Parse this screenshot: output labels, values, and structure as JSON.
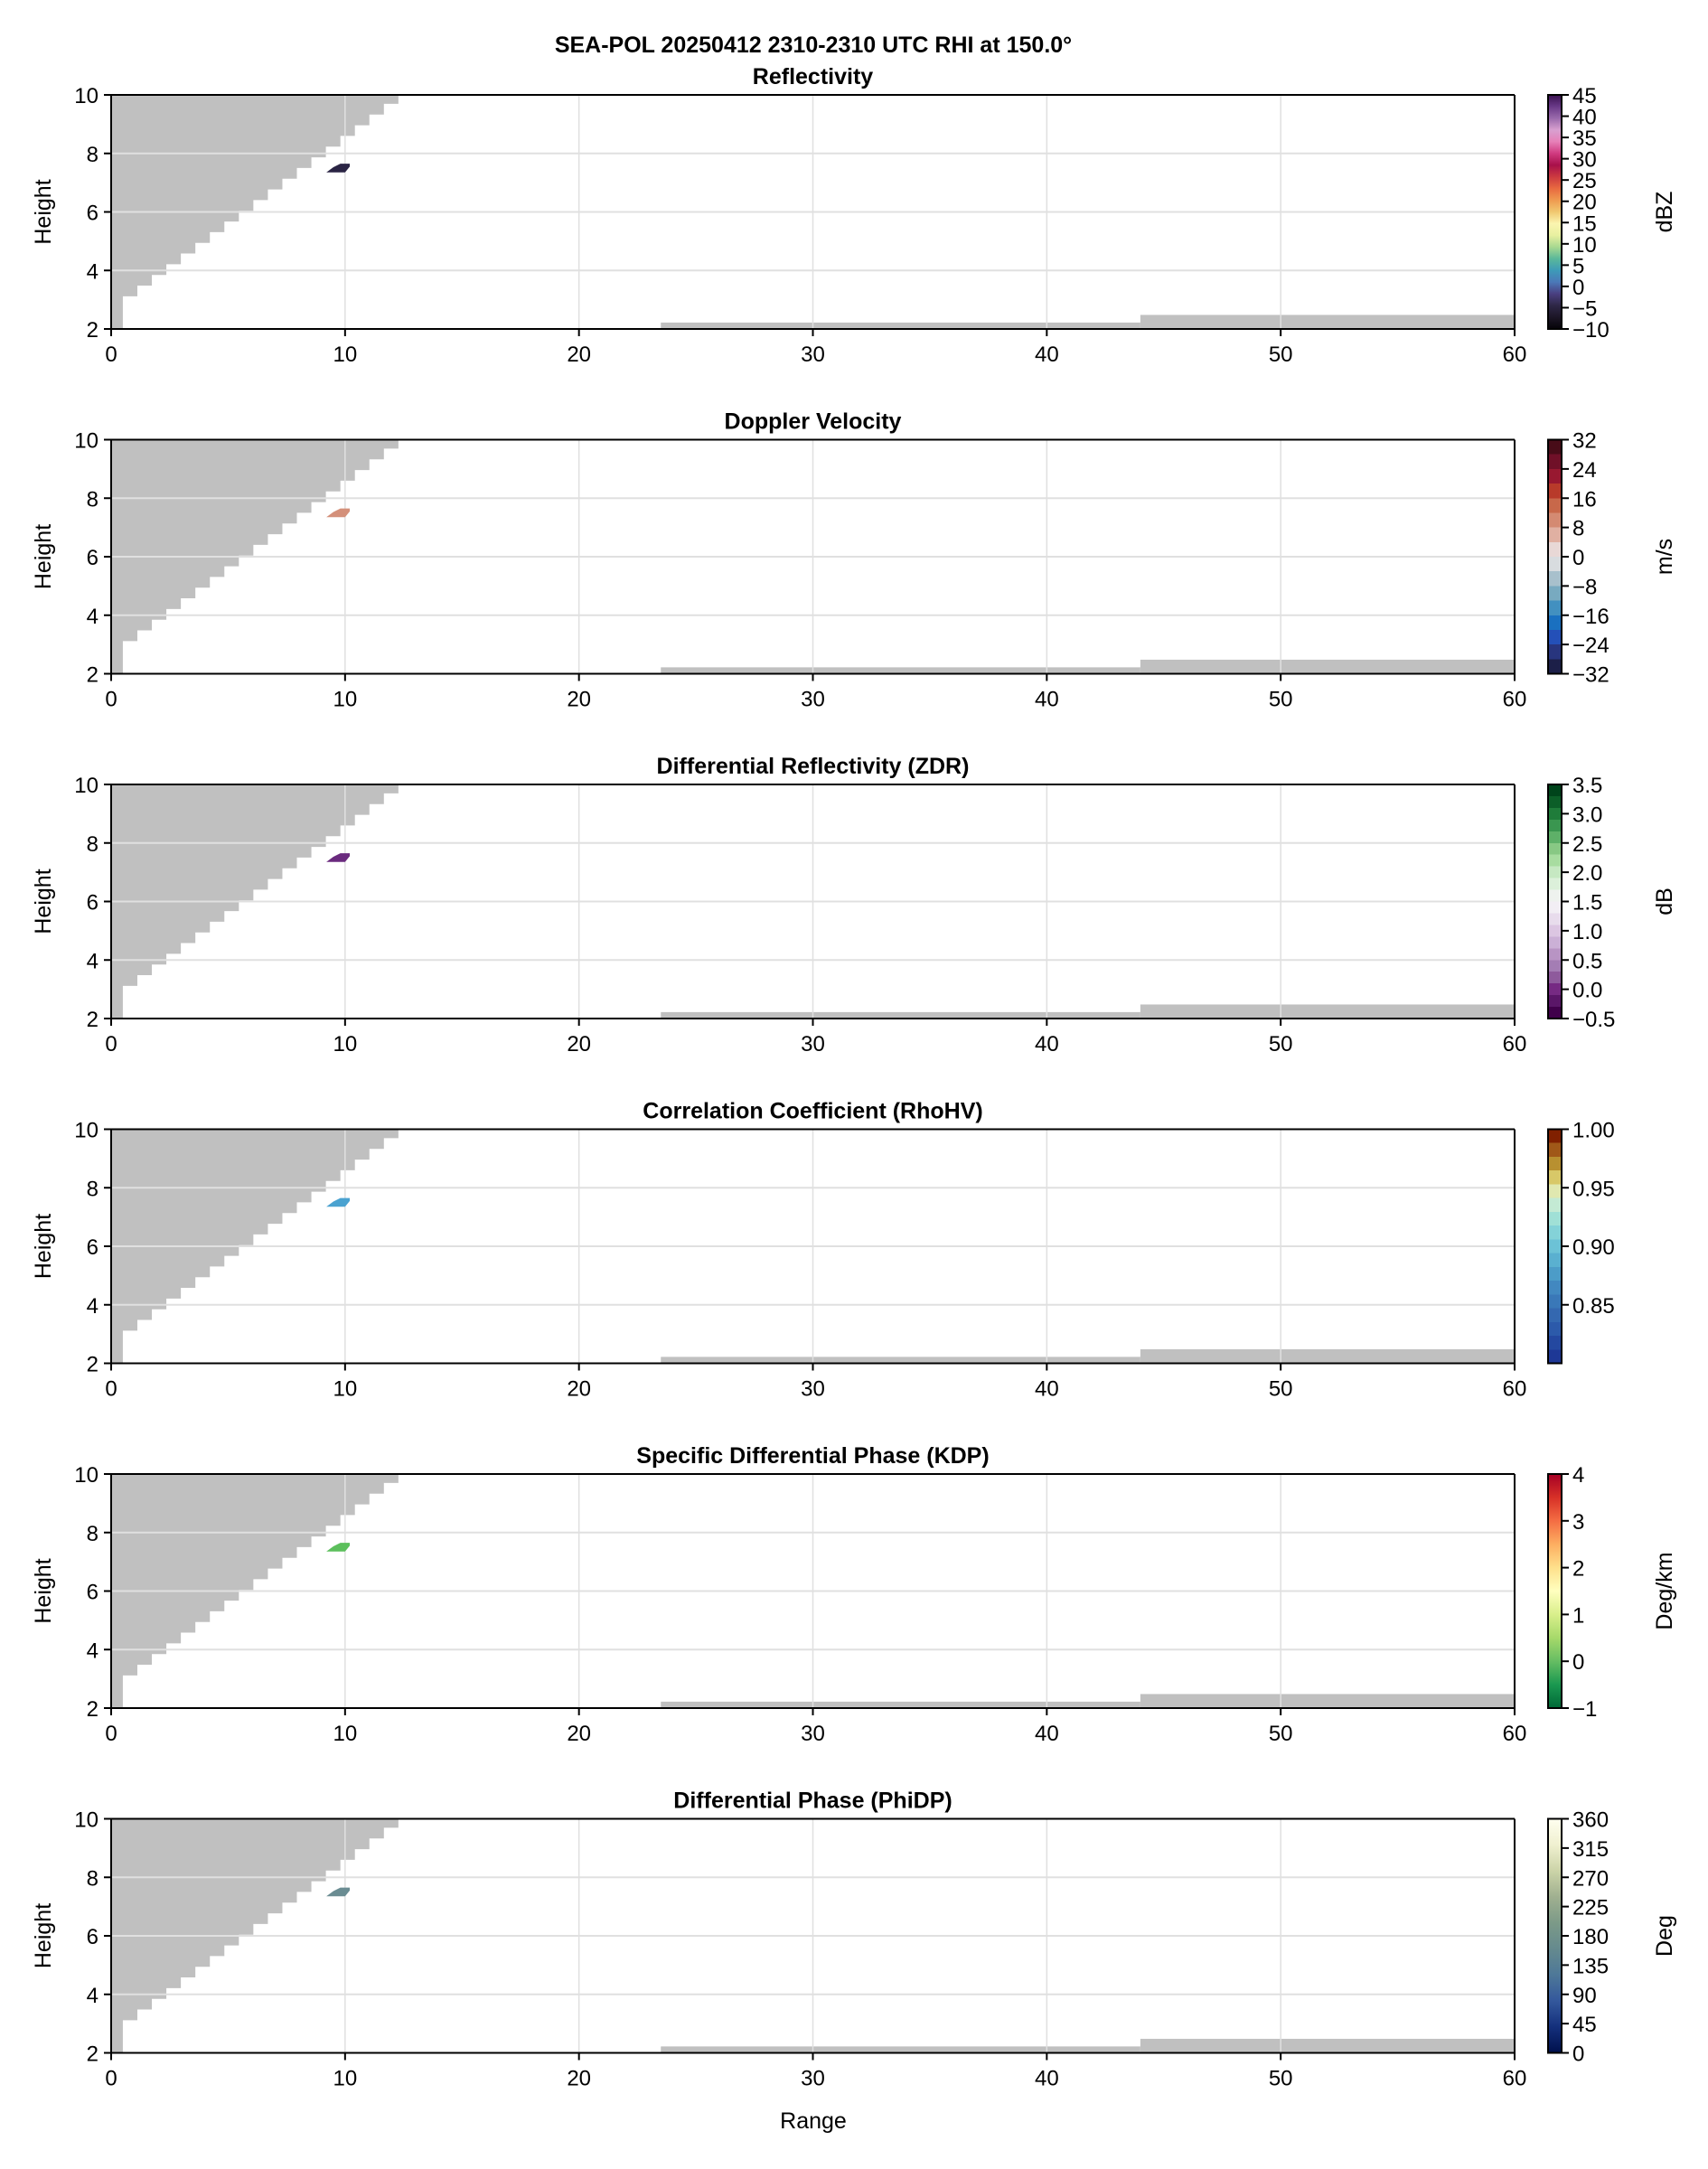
{
  "figure": {
    "suptitle": "SEA-POL 20250412 2310-2310 UTC RHI at 150.0°",
    "xlabel": "Range",
    "ylabel": "Height",
    "missing_color": "#c0c0c0",
    "grid_color": "#e0e0e0"
  },
  "chart_data": [
    {
      "type": "heatmap",
      "title": "Reflectivity",
      "xlabel": "",
      "ylabel": "Height",
      "xlim": [
        0,
        60
      ],
      "ylim": [
        2,
        10
      ],
      "grid": true,
      "xticks": [
        "0",
        "10",
        "20",
        "30",
        "40",
        "50",
        "60"
      ],
      "yticks": [
        "2",
        "4",
        "6",
        "8",
        "10"
      ],
      "colorbar": {
        "label": "dBZ",
        "range": [
          -10,
          45
        ],
        "ticks": [
          -10,
          -5,
          0,
          5,
          10,
          15,
          20,
          25,
          30,
          35,
          40,
          45
        ],
        "tick_labels": [
          "−10",
          "−5",
          "0",
          "5",
          "10",
          "15",
          "20",
          "25",
          "30",
          "35",
          "40",
          "45"
        ],
        "colors": [
          "#050308",
          "#1c1626",
          "#2e2746",
          "#4a3f80",
          "#4b78b8",
          "#3d9ab8",
          "#5ab89a",
          "#a8d890",
          "#e8f0a0",
          "#fbf5b0",
          "#f0c870",
          "#ef9a50",
          "#e86a40",
          "#cc3a40",
          "#a8104a",
          "#d03a80",
          "#e680b8",
          "#d8a0d0",
          "#9a6aac",
          "#6a3a88",
          "#3a1250"
        ]
      },
      "echo": {
        "range": [
          9.2,
          10.2
        ],
        "height": [
          7.35,
          7.65
        ],
        "color": "#2a2444"
      }
    },
    {
      "type": "heatmap",
      "title": "Doppler Velocity",
      "xlabel": "",
      "ylabel": "Height",
      "xlim": [
        0,
        60
      ],
      "ylim": [
        2,
        10
      ],
      "grid": true,
      "xticks": [
        "0",
        "10",
        "20",
        "30",
        "40",
        "50",
        "60"
      ],
      "yticks": [
        "2",
        "4",
        "6",
        "8",
        "10"
      ],
      "colorbar": {
        "label": "m/s",
        "range": [
          -32,
          32
        ],
        "ticks": [
          -32,
          -24,
          -16,
          -8,
          0,
          8,
          16,
          24,
          32
        ],
        "tick_labels": [
          "−32",
          "−24",
          "−16",
          "−8",
          "0",
          "8",
          "16",
          "24",
          "32"
        ],
        "colors": [
          "#1c1f48",
          "#28357e",
          "#2450b8",
          "#1a70c0",
          "#4290c0",
          "#78aac0",
          "#a8c0cc",
          "#d8dcdf",
          "#e8d8d6",
          "#e0b0a2",
          "#d48a72",
          "#c8684a",
          "#b83a2a",
          "#981830",
          "#701028",
          "#480c18"
        ],
        "discrete": true
      },
      "echo": {
        "range": [
          9.2,
          10.2
        ],
        "height": [
          7.35,
          7.65
        ],
        "color": "#d4907a"
      }
    },
    {
      "type": "heatmap",
      "title": "Differential Reflectivity (ZDR)",
      "xlabel": "",
      "ylabel": "Height",
      "xlim": [
        0,
        60
      ],
      "ylim": [
        2,
        10
      ],
      "grid": true,
      "xticks": [
        "0",
        "10",
        "20",
        "30",
        "40",
        "50",
        "60"
      ],
      "yticks": [
        "2",
        "4",
        "6",
        "8",
        "10"
      ],
      "colorbar": {
        "label": "dB",
        "range": [
          -0.5,
          3.5
        ],
        "ticks": [
          -0.5,
          0,
          0.5,
          1,
          1.5,
          2,
          2.5,
          3,
          3.5
        ],
        "tick_labels": [
          "−0.5",
          "0.0",
          "0.5",
          "1.0",
          "1.5",
          "2.0",
          "2.5",
          "3.0",
          "3.5"
        ],
        "colors": [
          "#40004b",
          "#5a1668",
          "#762a83",
          "#8e5a9c",
          "#a47db4",
          "#b894c4",
          "#cbb0d6",
          "#dcc6e2",
          "#e8dcec",
          "#f2eef4",
          "#eef2ee",
          "#dcf0da",
          "#c6e8c2",
          "#a8dca0",
          "#88c884",
          "#5eb068",
          "#3a9650",
          "#1f7c3a",
          "#0c5e28",
          "#00441b"
        ],
        "discrete": true
      },
      "echo": {
        "range": [
          9.2,
          10.2
        ],
        "height": [
          7.35,
          7.65
        ],
        "color": "#6a2a7e"
      }
    },
    {
      "type": "heatmap",
      "title": "Correlation Coefficient (RhoHV)",
      "xlabel": "",
      "ylabel": "Height",
      "xlim": [
        0,
        60
      ],
      "ylim": [
        2,
        10
      ],
      "grid": true,
      "xticks": [
        "0",
        "10",
        "20",
        "30",
        "40",
        "50",
        "60"
      ],
      "yticks": [
        "2",
        "4",
        "6",
        "8",
        "10"
      ],
      "colorbar": {
        "label": "",
        "range": [
          0.8,
          1.0
        ],
        "ticks": [
          0.85,
          0.9,
          0.95,
          1.0
        ],
        "tick_labels": [
          "0.85",
          "0.90",
          "0.95",
          "1.00"
        ],
        "colors": [
          "#1e3896",
          "#2448a0",
          "#2c5aaa",
          "#3468b0",
          "#3a78b8",
          "#4288c0",
          "#4c9cc8",
          "#5ab0d0",
          "#6cc2d6",
          "#84d2d8",
          "#a0e0d6",
          "#c4ead4",
          "#e0e8b0",
          "#d8c868",
          "#b89030",
          "#a05818",
          "#802000"
        ],
        "discrete": true
      },
      "echo": {
        "range": [
          9.2,
          10.2
        ],
        "height": [
          7.35,
          7.65
        ],
        "color": "#4aa2d0"
      }
    },
    {
      "type": "heatmap",
      "title": "Specific Differential Phase (KDP)",
      "xlabel": "",
      "ylabel": "Height",
      "xlim": [
        0,
        60
      ],
      "ylim": [
        2,
        10
      ],
      "grid": true,
      "xticks": [
        "0",
        "10",
        "20",
        "30",
        "40",
        "50",
        "60"
      ],
      "yticks": [
        "2",
        "4",
        "6",
        "8",
        "10"
      ],
      "colorbar": {
        "label": "Deg/km",
        "range": [
          -1,
          4
        ],
        "ticks": [
          -1,
          0,
          1,
          2,
          3,
          4
        ],
        "tick_labels": [
          "−1",
          "0",
          "1",
          "2",
          "3",
          "4"
        ],
        "colors": [
          "#006837",
          "#1a9850",
          "#66bd63",
          "#a6d96a",
          "#d9ef8b",
          "#ffffbf",
          "#fee08b",
          "#fdae61",
          "#f46d43",
          "#d73027",
          "#a50026"
        ]
      },
      "echo": {
        "range": [
          9.2,
          10.2
        ],
        "height": [
          7.35,
          7.65
        ],
        "color": "#5cbf5c"
      }
    },
    {
      "type": "heatmap",
      "title": "Differential Phase (PhiDP)",
      "xlabel": "Range",
      "ylabel": "Height",
      "xlim": [
        0,
        60
      ],
      "ylim": [
        2,
        10
      ],
      "grid": true,
      "xticks": [
        "0",
        "10",
        "20",
        "30",
        "40",
        "50",
        "60"
      ],
      "yticks": [
        "2",
        "4",
        "6",
        "8",
        "10"
      ],
      "colorbar": {
        "label": "Deg",
        "range": [
          0,
          360
        ],
        "ticks": [
          0,
          45,
          90,
          135,
          180,
          225,
          270,
          315,
          360
        ],
        "tick_labels": [
          "0",
          "45",
          "90",
          "135",
          "180",
          "225",
          "270",
          "315",
          "360"
        ],
        "colors": [
          "#00104c",
          "#14307c",
          "#34589c",
          "#4e7898",
          "#658a8e",
          "#7c9a88",
          "#a0b090",
          "#ccd4a8",
          "#f0f0d0",
          "#fffff0"
        ]
      },
      "echo": {
        "range": [
          9.2,
          10.2
        ],
        "height": [
          7.35,
          7.65
        ],
        "color": "#6a8c92"
      }
    }
  ]
}
